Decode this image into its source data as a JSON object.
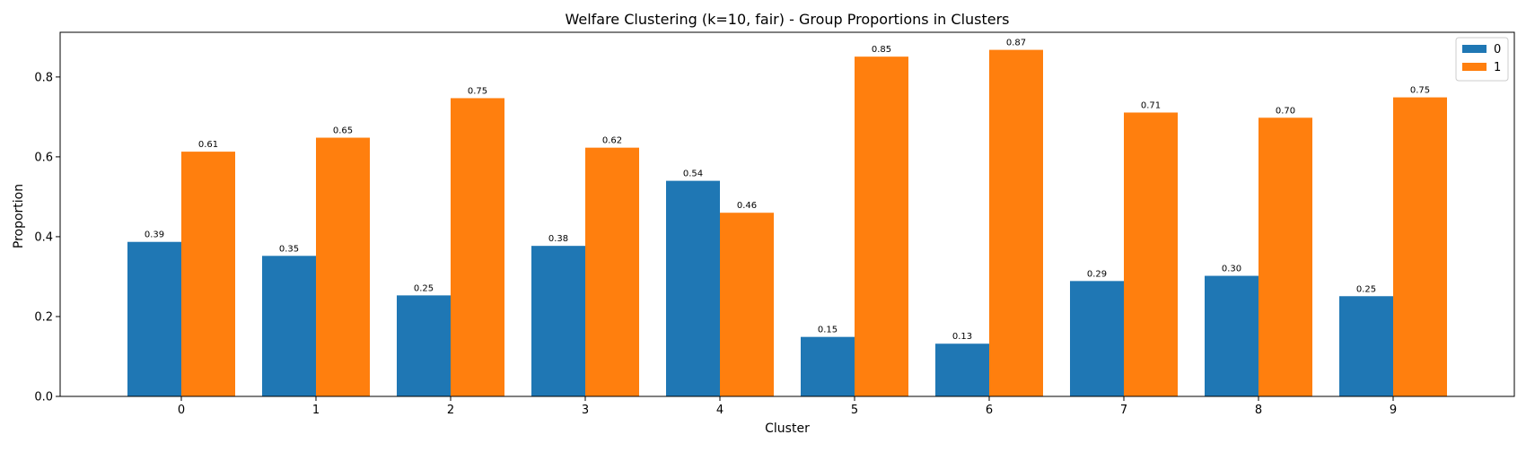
{
  "chart_data": {
    "type": "bar",
    "title": "Welfare Clustering (k=10, fair) - Group Proportions in Clusters",
    "xlabel": "Cluster",
    "ylabel": "Proportion",
    "categories": [
      "0",
      "1",
      "2",
      "3",
      "4",
      "5",
      "6",
      "7",
      "8",
      "9"
    ],
    "series": [
      {
        "name": "0",
        "color": "#1f77b4",
        "values": [
          0.387,
          0.352,
          0.253,
          0.377,
          0.54,
          0.149,
          0.132,
          0.289,
          0.302,
          0.251
        ],
        "labels": [
          "0.39",
          "0.35",
          "0.25",
          "0.38",
          "0.54",
          "0.15",
          "0.13",
          "0.29",
          "0.30",
          "0.25"
        ]
      },
      {
        "name": "1",
        "color": "#ff7f0e",
        "values": [
          0.613,
          0.648,
          0.747,
          0.623,
          0.46,
          0.851,
          0.868,
          0.711,
          0.698,
          0.749
        ],
        "labels": [
          "0.61",
          "0.65",
          "0.75",
          "0.62",
          "0.46",
          "0.85",
          "0.87",
          "0.71",
          "0.70",
          "0.75"
        ]
      }
    ],
    "ylim": [
      0,
      0.912
    ],
    "yticks": [
      0.0,
      0.2,
      0.4,
      0.6,
      0.8
    ],
    "ytick_labels": [
      "0.0",
      "0.2",
      "0.4",
      "0.6",
      "0.8"
    ],
    "grid": false,
    "legend_position": "top-right"
  }
}
